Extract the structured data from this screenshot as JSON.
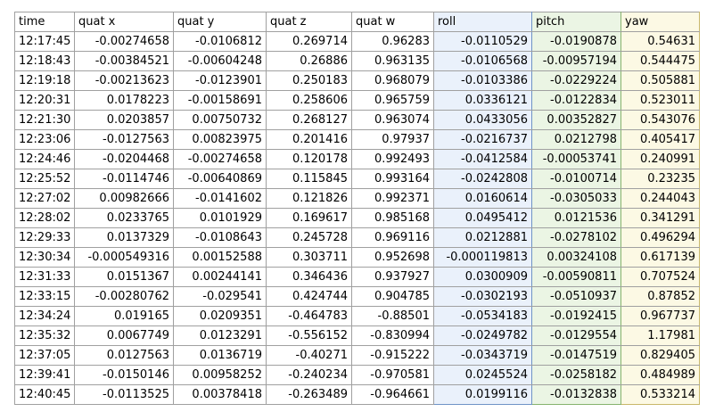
{
  "table": {
    "columns": [
      "time",
      "quat x",
      "quat y",
      "quat z",
      "quat w",
      "roll",
      "pitch",
      "yaw"
    ],
    "column_colors": {
      "roll": "#eaf1fb",
      "pitch": "#ebf5e4",
      "yaw": "#fcf9e4"
    },
    "rows": [
      [
        "12:17:45",
        "-0.00274658",
        "-0.0106812",
        "0.269714",
        "0.96283",
        "-0.0110529",
        "-0.0190878",
        "0.54631"
      ],
      [
        "12:18:43",
        "-0.00384521",
        "-0.00604248",
        "0.26886",
        "0.963135",
        "-0.0106568",
        "-0.00957194",
        "0.544475"
      ],
      [
        "12:19:18",
        "-0.00213623",
        "-0.0123901",
        "0.250183",
        "0.968079",
        "-0.0103386",
        "-0.0229224",
        "0.505881"
      ],
      [
        "12:20:31",
        "0.0178223",
        "-0.00158691",
        "0.258606",
        "0.965759",
        "0.0336121",
        "-0.0122834",
        "0.523011"
      ],
      [
        "12:21:30",
        "0.0203857",
        "0.00750732",
        "0.268127",
        "0.963074",
        "0.0433056",
        "0.00352827",
        "0.543076"
      ],
      [
        "12:23:06",
        "-0.0127563",
        "0.00823975",
        "0.201416",
        "0.97937",
        "-0.0216737",
        "0.0212798",
        "0.405417"
      ],
      [
        "12:24:46",
        "-0.0204468",
        "-0.00274658",
        "0.120178",
        "0.992493",
        "-0.0412584",
        "-0.00053741",
        "0.240991"
      ],
      [
        "12:25:52",
        "-0.0114746",
        "-0.00640869",
        "0.115845",
        "0.993164",
        "-0.0242808",
        "-0.0100714",
        "0.23235"
      ],
      [
        "12:27:02",
        "0.00982666",
        "-0.0141602",
        "0.121826",
        "0.992371",
        "0.0160614",
        "-0.0305033",
        "0.244043"
      ],
      [
        "12:28:02",
        "0.0233765",
        "0.0101929",
        "0.169617",
        "0.985168",
        "0.0495412",
        "0.0121536",
        "0.341291"
      ],
      [
        "12:29:33",
        "0.0137329",
        "-0.0108643",
        "0.245728",
        "0.969116",
        "0.0212881",
        "-0.0278102",
        "0.496294"
      ],
      [
        "12:30:34",
        "-0.000549316",
        "0.00152588",
        "0.303711",
        "0.952698",
        "-0.000119813",
        "0.00324108",
        "0.617139"
      ],
      [
        "12:31:33",
        "0.0151367",
        "0.00244141",
        "0.346436",
        "0.937927",
        "0.0300909",
        "-0.00590811",
        "0.707524"
      ],
      [
        "12:33:15",
        "-0.00280762",
        "-0.029541",
        "0.424744",
        "0.904785",
        "-0.0302193",
        "-0.0510937",
        "0.87852"
      ],
      [
        "12:34:24",
        "0.019165",
        "0.0209351",
        "-0.464783",
        "-0.88501",
        "-0.0534183",
        "-0.0192415",
        "0.967737"
      ],
      [
        "12:35:32",
        "0.0067749",
        "0.0123291",
        "-0.556152",
        "-0.830994",
        "-0.0249782",
        "-0.0129554",
        "1.17981"
      ],
      [
        "12:37:05",
        "0.0127563",
        "0.0136719",
        "-0.40271",
        "-0.915222",
        "-0.0343719",
        "-0.0147519",
        "0.829405"
      ],
      [
        "12:39:41",
        "-0.0150146",
        "0.00958252",
        "-0.240234",
        "-0.970581",
        "0.0245524",
        "-0.0258182",
        "0.484989"
      ],
      [
        "12:40:45",
        "-0.0113525",
        "0.00378418",
        "-0.263489",
        "-0.964661",
        "0.0199116",
        "-0.0132838",
        "0.533214"
      ]
    ]
  }
}
